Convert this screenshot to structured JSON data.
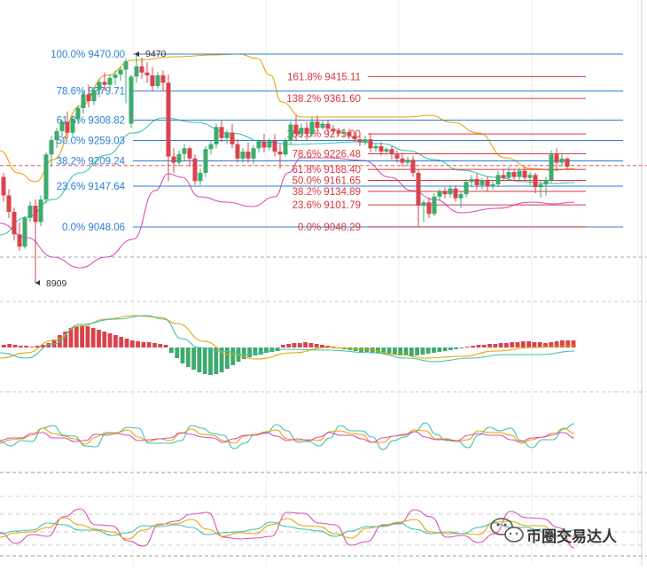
{
  "chart_data": {
    "type": "candlestick",
    "panels": [
      "price",
      "macd",
      "oscillator_1",
      "oscillator_2"
    ],
    "price_range": [
      8860,
      9530
    ],
    "current_price_line": 9198,
    "extremes": {
      "high": {
        "label": "9470",
        "value": 9470
      },
      "low": {
        "label": "8909",
        "value": 8909
      }
    },
    "fib_left": [
      {
        "label": "100.0% 9470.00",
        "value": 9470.0
      },
      {
        "label": "78.6% 9379.71",
        "value": 9379.71
      },
      {
        "label": "61.8% 9308.82",
        "value": 9308.82
      },
      {
        "label": "50.0% 9259.03",
        "value": 9259.03
      },
      {
        "label": "38.2% 9209.24",
        "value": 9209.24
      },
      {
        "label": "23.6% 9147.64",
        "value": 9147.64
      },
      {
        "label": "0.0% 9048.06",
        "value": 9048.06
      }
    ],
    "fib_right": [
      {
        "label": "161.8% 9415.11",
        "value": 9415.11
      },
      {
        "label": "138.2% 9361.60",
        "value": 9361.6
      },
      {
        "label": "100.0% 9275.00",
        "value": 9275.0
      },
      {
        "label": "78.6% 9226.48",
        "value": 9226.48
      },
      {
        "label": "61.8% 9188.40",
        "value": 9188.4
      },
      {
        "label": "50.0% 9161.65",
        "value": 9161.65
      },
      {
        "label": "38.2% 9134.89",
        "value": 9134.89
      },
      {
        "label": "23.6% 9101.79",
        "value": 9101.79
      },
      {
        "label": "0.0% 9048.29",
        "value": 9048.29
      }
    ],
    "colors": {
      "up": "#3daa6e",
      "down": "#d9434b",
      "fib_blue": "#2a7fd4",
      "fib_red": "#d9363e",
      "band_upper": "#e8a400",
      "band_middle": "#3fc0b0",
      "band_lower": "#d94fb8",
      "grid": "#bbbbbb"
    }
  },
  "watermark": {
    "text": "币圈交易达人",
    "icon": "wechat-icon"
  }
}
